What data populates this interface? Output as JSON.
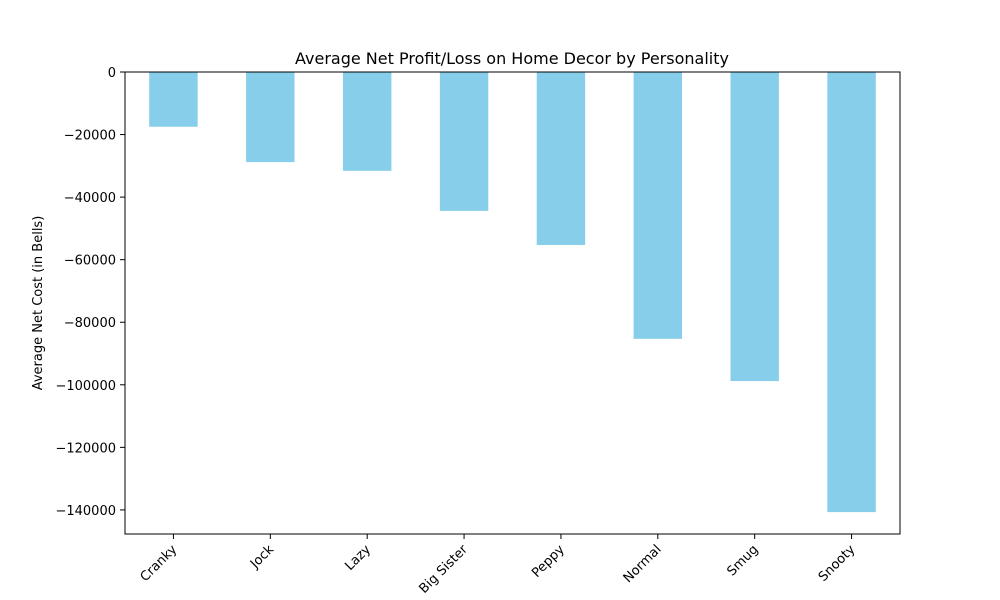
{
  "chart_data": {
    "type": "bar",
    "title": "Average Net Profit/Loss on Home Decor by Personality",
    "xlabel": "",
    "ylabel": "Average Net Cost (in Bells)",
    "categories": [
      "Cranky",
      "Jock",
      "Lazy",
      "Big Sister",
      "Peppy",
      "Normal",
      "Smug",
      "Snooty"
    ],
    "values": [
      -17500,
      -28800,
      -31600,
      -44400,
      -55300,
      -85300,
      -98800,
      -140700
    ],
    "ylim": [
      -147700,
      0
    ],
    "yticks": [
      0,
      -20000,
      -40000,
      -60000,
      -80000,
      -100000,
      -120000,
      -140000
    ],
    "ytick_labels": [
      "0",
      "−20000",
      "−40000",
      "−60000",
      "−80000",
      "−100000",
      "−120000",
      "−140000"
    ],
    "bar_color": "#87CEEB",
    "grid": false,
    "legend": "none"
  }
}
